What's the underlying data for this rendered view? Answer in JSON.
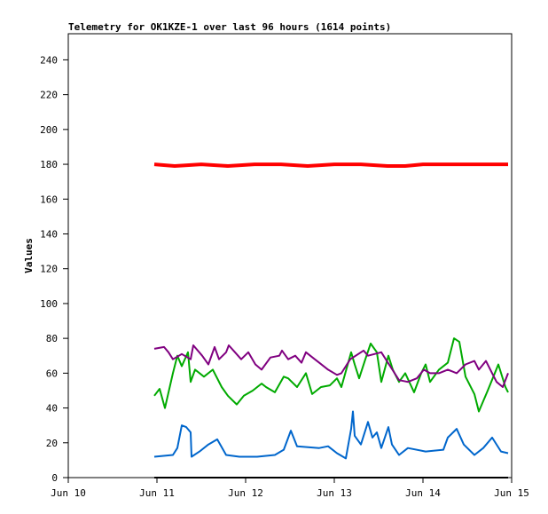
{
  "chart_data": {
    "type": "line",
    "title": "Telemetry for OK1KZE-1 over last 96 hours (1614 points)",
    "xlabel": "",
    "ylabel": "Values",
    "xlim": [
      0,
      5
    ],
    "ylim": [
      0,
      255
    ],
    "x_unit": "days since Jun 10",
    "xticks": [
      {
        "v": 0,
        "label": "Jun 10"
      },
      {
        "v": 1,
        "label": "Jun 11"
      },
      {
        "v": 2,
        "label": "Jun 12"
      },
      {
        "v": 3,
        "label": "Jun 13"
      },
      {
        "v": 4,
        "label": "Jun 14"
      },
      {
        "v": 5,
        "label": "Jun 15"
      }
    ],
    "yticks": [
      0,
      20,
      40,
      60,
      80,
      100,
      120,
      140,
      160,
      180,
      200,
      220,
      240
    ],
    "grid": false,
    "series": [
      {
        "name": "red",
        "color": "#ff0000",
        "width": 4,
        "points": [
          [
            0.97,
            180
          ],
          [
            1.2,
            179
          ],
          [
            1.5,
            180
          ],
          [
            1.8,
            179
          ],
          [
            2.1,
            180
          ],
          [
            2.4,
            180
          ],
          [
            2.7,
            179
          ],
          [
            3.0,
            180
          ],
          [
            3.3,
            180
          ],
          [
            3.6,
            179
          ],
          [
            3.8,
            179
          ],
          [
            4.0,
            180
          ],
          [
            4.3,
            180
          ],
          [
            4.6,
            180
          ],
          [
            4.96,
            180
          ]
        ]
      },
      {
        "name": "black",
        "color": "#000000",
        "width": 2,
        "points": [
          [
            0.97,
            0
          ],
          [
            4.96,
            0
          ]
        ]
      },
      {
        "name": "blue",
        "color": "#0066cc",
        "width": 2,
        "points": [
          [
            0.97,
            12
          ],
          [
            1.18,
            13
          ],
          [
            1.23,
            17
          ],
          [
            1.28,
            30
          ],
          [
            1.33,
            29
          ],
          [
            1.38,
            26
          ],
          [
            1.39,
            12
          ],
          [
            1.48,
            15
          ],
          [
            1.58,
            19
          ],
          [
            1.68,
            22
          ],
          [
            1.78,
            13
          ],
          [
            1.93,
            12
          ],
          [
            2.13,
            12
          ],
          [
            2.33,
            13
          ],
          [
            2.43,
            16
          ],
          [
            2.51,
            27
          ],
          [
            2.58,
            18
          ],
          [
            2.83,
            17
          ],
          [
            2.93,
            18
          ],
          [
            3.03,
            14
          ],
          [
            3.13,
            11
          ],
          [
            3.19,
            28
          ],
          [
            3.21,
            38
          ],
          [
            3.23,
            24
          ],
          [
            3.3,
            19
          ],
          [
            3.38,
            32
          ],
          [
            3.43,
            23
          ],
          [
            3.48,
            26
          ],
          [
            3.53,
            17
          ],
          [
            3.61,
            29
          ],
          [
            3.65,
            19
          ],
          [
            3.73,
            13
          ],
          [
            3.83,
            17
          ],
          [
            4.03,
            15
          ],
          [
            4.23,
            16
          ],
          [
            4.28,
            23
          ],
          [
            4.38,
            28
          ],
          [
            4.46,
            19
          ],
          [
            4.58,
            13
          ],
          [
            4.68,
            17
          ],
          [
            4.78,
            23
          ],
          [
            4.88,
            15
          ],
          [
            4.96,
            14
          ]
        ]
      },
      {
        "name": "green",
        "color": "#00aa00",
        "width": 2,
        "points": [
          [
            0.97,
            47
          ],
          [
            1.03,
            51
          ],
          [
            1.09,
            40
          ],
          [
            1.18,
            60
          ],
          [
            1.23,
            70
          ],
          [
            1.28,
            64
          ],
          [
            1.35,
            72
          ],
          [
            1.38,
            55
          ],
          [
            1.43,
            62
          ],
          [
            1.53,
            58
          ],
          [
            1.63,
            62
          ],
          [
            1.73,
            52
          ],
          [
            1.8,
            47
          ],
          [
            1.9,
            42
          ],
          [
            1.98,
            47
          ],
          [
            2.08,
            50
          ],
          [
            2.18,
            54
          ],
          [
            2.23,
            52
          ],
          [
            2.33,
            49
          ],
          [
            2.43,
            58
          ],
          [
            2.48,
            57
          ],
          [
            2.58,
            52
          ],
          [
            2.68,
            60
          ],
          [
            2.75,
            48
          ],
          [
            2.85,
            52
          ],
          [
            2.95,
            53
          ],
          [
            3.03,
            57
          ],
          [
            3.08,
            52
          ],
          [
            3.19,
            72
          ],
          [
            3.23,
            65
          ],
          [
            3.28,
            57
          ],
          [
            3.35,
            68
          ],
          [
            3.41,
            77
          ],
          [
            3.48,
            72
          ],
          [
            3.53,
            55
          ],
          [
            3.61,
            70
          ],
          [
            3.66,
            62
          ],
          [
            3.73,
            55
          ],
          [
            3.8,
            60
          ],
          [
            3.9,
            49
          ],
          [
            3.98,
            60
          ],
          [
            4.03,
            65
          ],
          [
            4.08,
            55
          ],
          [
            4.18,
            62
          ],
          [
            4.28,
            66
          ],
          [
            4.35,
            80
          ],
          [
            4.41,
            78
          ],
          [
            4.48,
            58
          ],
          [
            4.58,
            48
          ],
          [
            4.63,
            38
          ],
          [
            4.73,
            50
          ],
          [
            4.81,
            60
          ],
          [
            4.85,
            65
          ],
          [
            4.93,
            52
          ],
          [
            4.96,
            49
          ]
        ]
      },
      {
        "name": "purple",
        "color": "#800080",
        "width": 2,
        "points": [
          [
            0.97,
            74
          ],
          [
            1.08,
            75
          ],
          [
            1.13,
            72
          ],
          [
            1.18,
            68
          ],
          [
            1.28,
            71
          ],
          [
            1.38,
            68
          ],
          [
            1.41,
            76
          ],
          [
            1.51,
            70
          ],
          [
            1.58,
            65
          ],
          [
            1.65,
            75
          ],
          [
            1.7,
            68
          ],
          [
            1.78,
            72
          ],
          [
            1.81,
            76
          ],
          [
            1.88,
            72
          ],
          [
            1.95,
            68
          ],
          [
            2.03,
            72
          ],
          [
            2.11,
            65
          ],
          [
            2.18,
            62
          ],
          [
            2.28,
            69
          ],
          [
            2.38,
            70
          ],
          [
            2.41,
            73
          ],
          [
            2.48,
            68
          ],
          [
            2.56,
            70
          ],
          [
            2.63,
            66
          ],
          [
            2.68,
            72
          ],
          [
            2.78,
            68
          ],
          [
            2.83,
            66
          ],
          [
            2.93,
            62
          ],
          [
            3.03,
            59
          ],
          [
            3.08,
            60
          ],
          [
            3.18,
            68
          ],
          [
            3.33,
            73
          ],
          [
            3.38,
            70
          ],
          [
            3.53,
            72
          ],
          [
            3.63,
            64
          ],
          [
            3.73,
            56
          ],
          [
            3.83,
            55
          ],
          [
            3.93,
            57
          ],
          [
            4.01,
            62
          ],
          [
            4.08,
            60
          ],
          [
            4.18,
            60
          ],
          [
            4.28,
            62
          ],
          [
            4.38,
            60
          ],
          [
            4.48,
            65
          ],
          [
            4.58,
            67
          ],
          [
            4.63,
            62
          ],
          [
            4.71,
            67
          ],
          [
            4.78,
            60
          ],
          [
            4.83,
            55
          ],
          [
            4.9,
            52
          ],
          [
            4.96,
            60
          ]
        ]
      }
    ]
  }
}
